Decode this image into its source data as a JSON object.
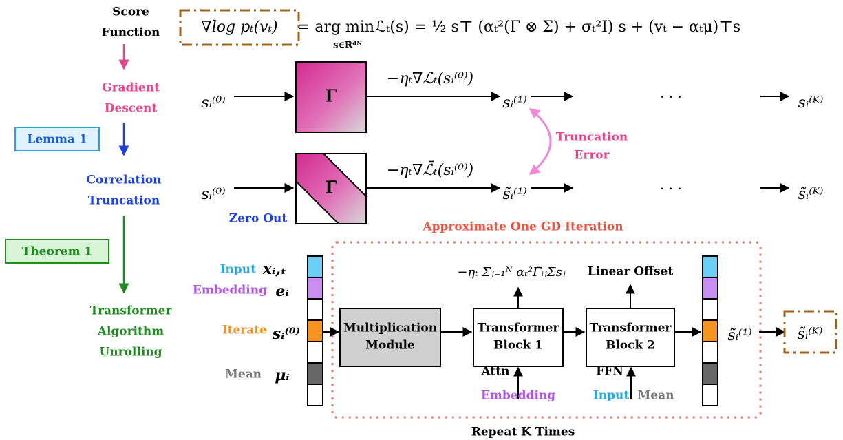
{
  "steps": {
    "score_function": [
      "Score",
      "Function"
    ],
    "gradient_descent": [
      "Gradient",
      "Descent"
    ],
    "lemma": "Lemma 1",
    "correlation_truncation": [
      "Correlation",
      "Truncation"
    ],
    "theorem": "Theorem 1",
    "unrolling": [
      "Transformer",
      "Algorithm",
      "Unrolling"
    ]
  },
  "objective": {
    "score": "∇log pₜ(vₜ)",
    "argmin": "= arg min",
    "domain": "s∈ℝᵈᴺ",
    "loss": "ℒₜ(s) = ½ s⊤ (αₜ²(Γ ⊗ Σ) + σₜ²I) s + (vₜ − αₜμ)⊤s"
  },
  "full_row": {
    "start": "sᵢ⁽⁰⁾",
    "matrix": "Γ",
    "step": "−ηₜ∇ℒₜ(sᵢ⁽⁰⁾)",
    "next": "sᵢ⁽¹⁾",
    "dots": "· · ·",
    "end": "sᵢ⁽ᴷ⁾"
  },
  "truncation_error": [
    "Truncation",
    "Error"
  ],
  "truncated_row": {
    "start": "sᵢ⁽⁰⁾",
    "matrix": "Γ̄",
    "step": "−ηₜ∇ℒ̄ₜ(sᵢ⁽⁰⁾)",
    "next": "s̃ᵢ⁽¹⁾",
    "dots": "· · ·",
    "end": "s̃ᵢ⁽ᴷ⁾",
    "zero_out": "Zero Out"
  },
  "gd_iteration": {
    "title": "Approximate One GD Iteration",
    "inputs": [
      {
        "label": "Input",
        "symbol": "xᵢ,ₜ"
      },
      {
        "label": "Embedding",
        "symbol": "eᵢ"
      },
      {
        "label": "Iterate",
        "symbol": "sᵢ⁽⁰⁾"
      },
      {
        "label": "Mean",
        "symbol": "μᵢ"
      }
    ],
    "multiplication": [
      "Multiplication",
      "Module"
    ],
    "block1": [
      "Transformer",
      "Block 1"
    ],
    "block2": [
      "Transformer",
      "Block 2"
    ],
    "attn_output": "−ηₜ Σⱼ₌₁ᴺ αₜ²Γ̄ᵢⱼΣsⱼ",
    "ffn_output": "Linear Offset",
    "attn": "Attn",
    "attn_input": "Embedding",
    "ffn": "FFN",
    "ffn_inputs": [
      "Input",
      "Mean"
    ],
    "output": "s̃ᵢ⁽¹⁾",
    "final": "s̃ᵢ⁽ᴷ⁾",
    "repeat": "Repeat K Times"
  }
}
